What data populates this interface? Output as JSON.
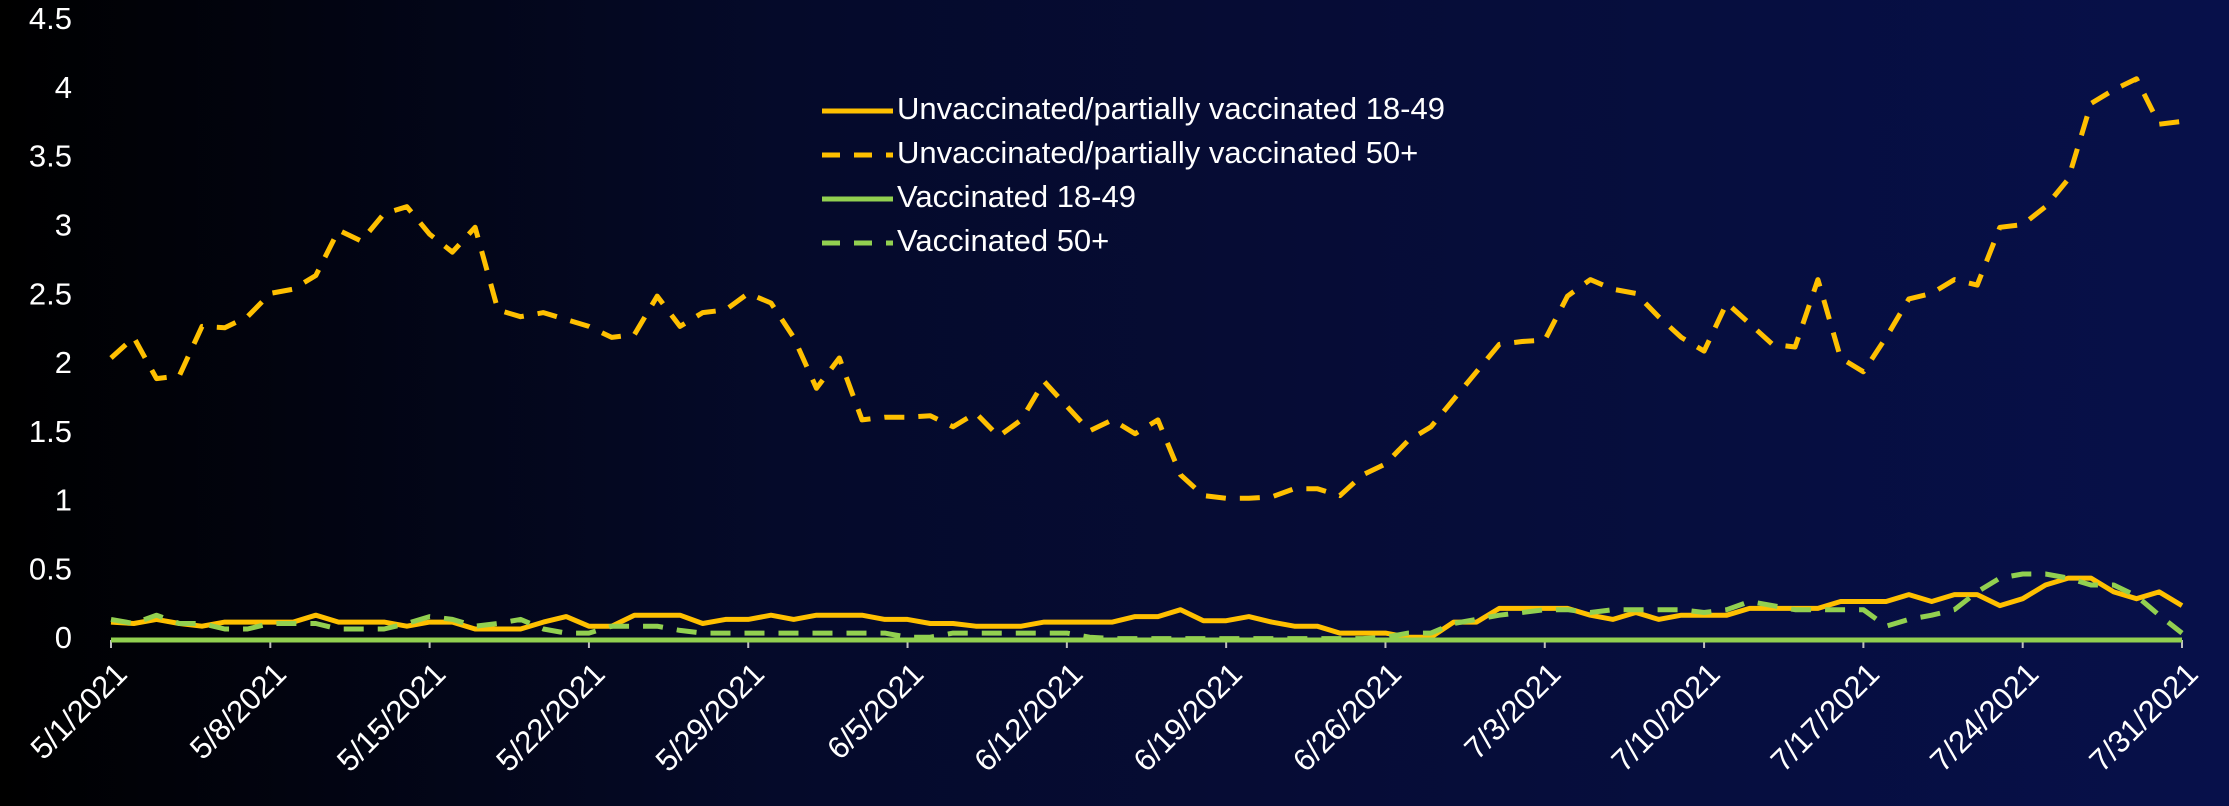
{
  "chart_data": {
    "type": "line",
    "categories": [
      "5/1/2021",
      null,
      null,
      null,
      null,
      null,
      null,
      "5/8/2021",
      null,
      null,
      null,
      null,
      null,
      null,
      "5/15/2021",
      null,
      null,
      null,
      null,
      null,
      null,
      "5/22/2021",
      null,
      null,
      null,
      null,
      null,
      null,
      "5/29/2021",
      null,
      null,
      null,
      null,
      null,
      null,
      "6/5/2021",
      null,
      null,
      null,
      null,
      null,
      null,
      "6/12/2021",
      null,
      null,
      null,
      null,
      null,
      null,
      "6/19/2021",
      null,
      null,
      null,
      null,
      null,
      null,
      "6/26/2021",
      null,
      null,
      null,
      null,
      null,
      null,
      "7/3/2021",
      null,
      null,
      null,
      null,
      null,
      null,
      "7/10/2021",
      null,
      null,
      null,
      null,
      null,
      null,
      "7/17/2021",
      null,
      null,
      null,
      null,
      null,
      null,
      "7/24/2021",
      null,
      null,
      null,
      null,
      null,
      null,
      "7/31/2021"
    ],
    "series": [
      {
        "name": "Unvaccinated/partially vaccinated 18-49",
        "color": "#ffc000",
        "dashed": false,
        "values": [
          0.13,
          0.12,
          0.15,
          0.12,
          0.1,
          0.13,
          0.13,
          0.13,
          0.13,
          0.18,
          0.13,
          0.13,
          0.13,
          0.1,
          0.13,
          0.13,
          0.08,
          0.08,
          0.08,
          0.13,
          0.17,
          0.1,
          0.1,
          0.18,
          0.18,
          0.18,
          0.12,
          0.15,
          0.15,
          0.18,
          0.15,
          0.18,
          0.18,
          0.18,
          0.15,
          0.15,
          0.12,
          0.12,
          0.1,
          0.1,
          0.1,
          0.13,
          0.13,
          0.13,
          0.13,
          0.17,
          0.17,
          0.22,
          0.14,
          0.14,
          0.17,
          0.13,
          0.1,
          0.1,
          0.05,
          0.05,
          0.05,
          0.02,
          0.02,
          0.13,
          0.13,
          0.23,
          0.23,
          0.23,
          0.23,
          0.18,
          0.15,
          0.2,
          0.15,
          0.18,
          0.18,
          0.18,
          0.23,
          0.23,
          0.23,
          0.23,
          0.28,
          0.28,
          0.28,
          0.33,
          0.28,
          0.33,
          0.33,
          0.25,
          0.3,
          0.4,
          0.45,
          0.45,
          0.35,
          0.3,
          0.35,
          0.25
        ]
      },
      {
        "name": "Unvaccinated/partially vaccinated 50+",
        "color": "#ffc000",
        "dashed": true,
        "values": [
          2.05,
          2.2,
          1.9,
          1.92,
          2.28,
          2.27,
          2.35,
          2.52,
          2.55,
          2.65,
          2.98,
          2.9,
          3.1,
          3.15,
          2.95,
          2.82,
          3.0,
          2.4,
          2.35,
          2.38,
          2.33,
          2.28,
          2.2,
          2.22,
          2.5,
          2.28,
          2.38,
          2.4,
          2.52,
          2.45,
          2.2,
          1.83,
          2.05,
          1.6,
          1.62,
          1.62,
          1.63,
          1.55,
          1.65,
          1.48,
          1.6,
          1.88,
          1.7,
          1.52,
          1.6,
          1.5,
          1.6,
          1.2,
          1.05,
          1.03,
          1.03,
          1.04,
          1.1,
          1.1,
          1.05,
          1.2,
          1.28,
          1.45,
          1.55,
          1.75,
          1.95,
          2.15,
          2.17,
          2.18,
          2.5,
          2.62,
          2.55,
          2.52,
          2.35,
          2.2,
          2.1,
          2.45,
          2.3,
          2.15,
          2.13,
          2.62,
          2.05,
          1.95,
          2.2,
          2.48,
          2.52,
          2.62,
          2.58,
          3.0,
          3.02,
          3.15,
          3.35,
          3.9,
          4.0,
          4.08,
          3.75,
          3.77
        ]
      },
      {
        "name": "Vaccinated 18-49",
        "color": "#92d050",
        "dashed": false,
        "values": [
          0,
          0,
          0,
          0,
          0,
          0,
          0,
          0,
          0,
          0,
          0,
          0,
          0,
          0,
          0,
          0,
          0,
          0,
          0,
          0,
          0,
          0,
          0,
          0,
          0,
          0,
          0,
          0,
          0,
          0,
          0,
          0,
          0,
          0,
          0,
          0,
          0,
          0,
          0,
          0,
          0,
          0,
          0,
          0,
          0,
          0,
          0,
          0,
          0,
          0,
          0,
          0,
          0,
          0,
          0,
          0,
          0,
          0,
          0,
          0,
          0,
          0,
          0,
          0,
          0,
          0,
          0,
          0,
          0,
          0,
          0,
          0,
          0,
          0,
          0,
          0,
          0,
          0,
          0,
          0,
          0,
          0,
          0,
          0,
          0,
          0,
          0,
          0,
          0,
          0,
          0,
          0
        ]
      },
      {
        "name": "Vaccinated 50+",
        "color": "#92d050",
        "dashed": true,
        "values": [
          0.15,
          0.12,
          0.18,
          0.12,
          0.12,
          0.08,
          0.08,
          0.12,
          0.12,
          0.12,
          0.08,
          0.08,
          0.08,
          0.12,
          0.17,
          0.15,
          0.1,
          0.12,
          0.15,
          0.08,
          0.05,
          0.05,
          0.1,
          0.1,
          0.1,
          0.07,
          0.05,
          0.05,
          0.05,
          0.05,
          0.05,
          0.05,
          0.05,
          0.05,
          0.05,
          0.02,
          0.02,
          0.05,
          0.05,
          0.05,
          0.05,
          0.05,
          0.05,
          0.02,
          0.01,
          0.01,
          0.01,
          0.01,
          0.01,
          0.01,
          0.01,
          0.01,
          0.01,
          0.01,
          0.01,
          0.01,
          0.02,
          0.05,
          0.05,
          0.12,
          0.15,
          0.18,
          0.2,
          0.22,
          0.22,
          0.2,
          0.22,
          0.22,
          0.22,
          0.22,
          0.2,
          0.22,
          0.28,
          0.25,
          0.22,
          0.22,
          0.22,
          0.22,
          0.1,
          0.15,
          0.18,
          0.22,
          0.35,
          0.45,
          0.48,
          0.48,
          0.45,
          0.4,
          0.4,
          0.32,
          0.18,
          0.05
        ]
      }
    ],
    "ylim": [
      0,
      4.5
    ],
    "yticks": [
      0,
      0.5,
      1,
      1.5,
      2,
      2.5,
      3,
      3.5,
      4,
      4.5
    ],
    "grid": false
  }
}
